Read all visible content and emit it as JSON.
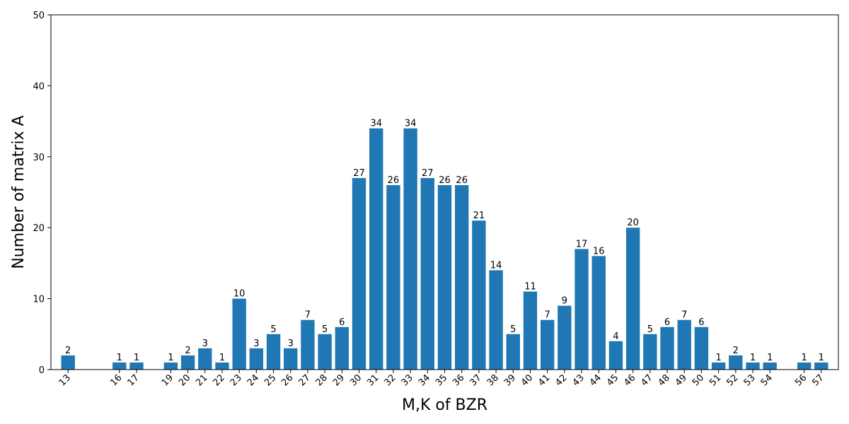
{
  "chart_data": {
    "type": "bar",
    "title": "",
    "xlabel": "M,K of BZR",
    "ylabel": "Number of matrix A",
    "ylim": [
      0,
      50
    ],
    "yticks": [
      0,
      10,
      20,
      30,
      40,
      50
    ],
    "xlim": [
      12,
      58
    ],
    "grid": false,
    "bar_color": "#1f77b4",
    "x": [
      13,
      16,
      17,
      19,
      20,
      21,
      22,
      23,
      24,
      25,
      26,
      27,
      28,
      29,
      30,
      31,
      32,
      33,
      34,
      35,
      36,
      37,
      38,
      39,
      40,
      41,
      42,
      43,
      44,
      45,
      46,
      47,
      48,
      49,
      50,
      51,
      52,
      53,
      54,
      56,
      57
    ],
    "values": [
      2,
      1,
      1,
      1,
      2,
      3,
      1,
      10,
      3,
      5,
      3,
      7,
      5,
      6,
      27,
      34,
      26,
      34,
      27,
      26,
      26,
      21,
      14,
      5,
      11,
      7,
      9,
      17,
      16,
      4,
      20,
      5,
      6,
      7,
      6,
      1,
      2,
      1,
      1,
      1,
      1
    ]
  }
}
